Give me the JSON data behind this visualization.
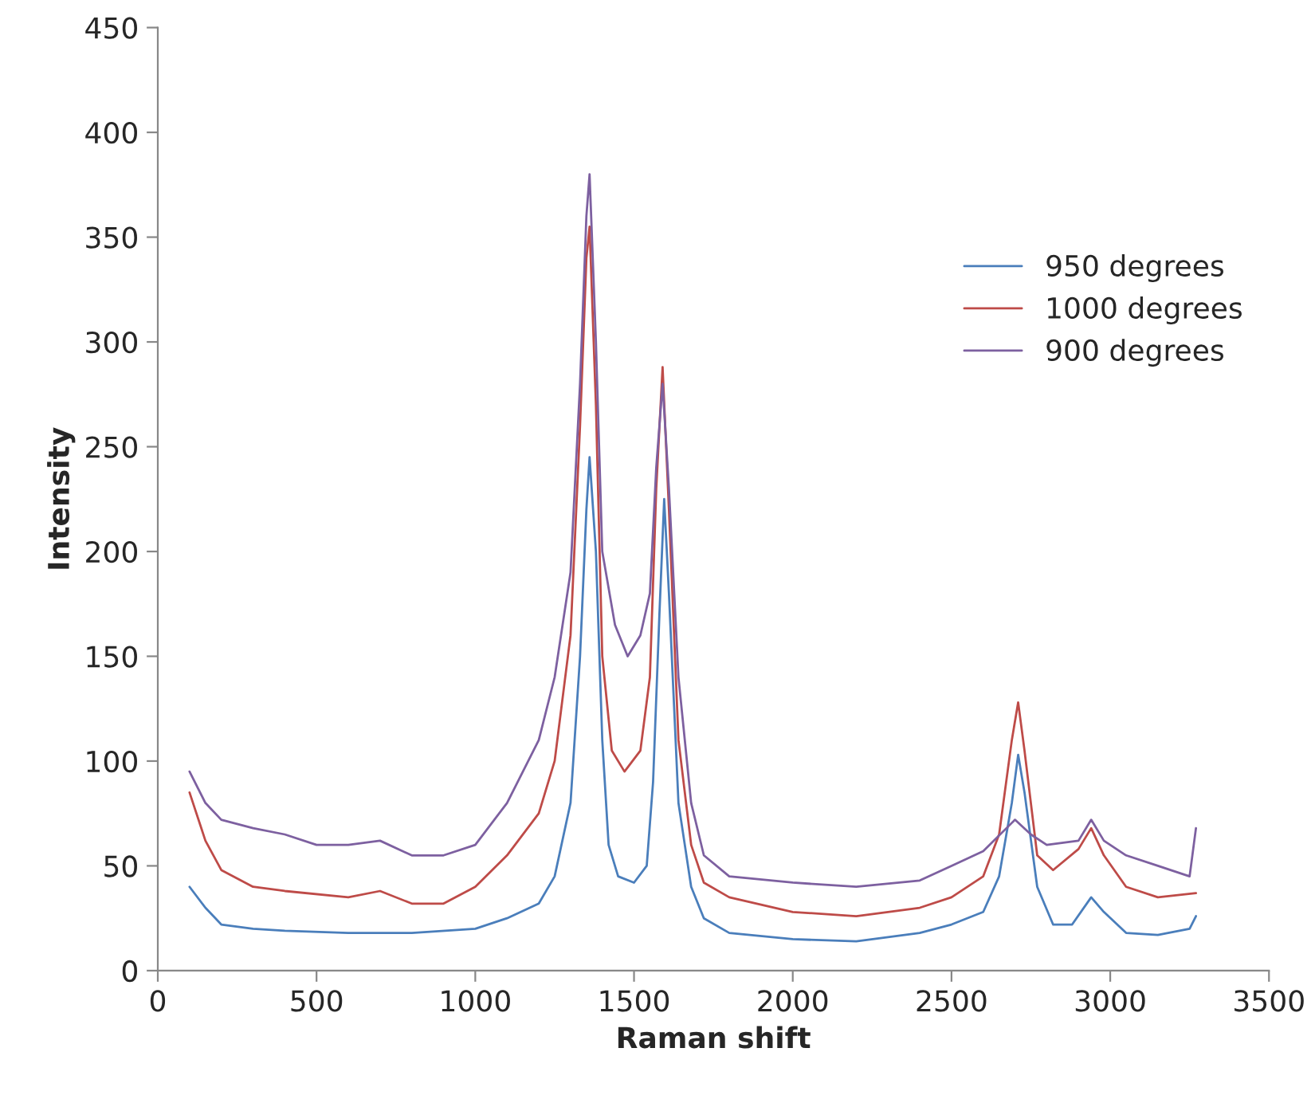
{
  "chart_data": {
    "type": "line",
    "xlabel": "Raman shift",
    "ylabel": "Intensity",
    "xlim": [
      0,
      3500
    ],
    "xticks": [
      0,
      500,
      1000,
      1500,
      2000,
      2500,
      3000,
      3500
    ],
    "ylim": [
      0,
      450
    ],
    "yticks": [
      0,
      50,
      100,
      150,
      200,
      250,
      300,
      350,
      400,
      450
    ],
    "grid": false,
    "legend": "right",
    "marker": "none",
    "line_style": "solid",
    "series": [
      {
        "name": "950 degrees",
        "color": "#4a7ebb",
        "x": [
          100,
          150,
          200,
          300,
          400,
          600,
          800,
          1000,
          1100,
          1200,
          1250,
          1300,
          1330,
          1350,
          1360,
          1380,
          1400,
          1420,
          1450,
          1500,
          1540,
          1560,
          1580,
          1595,
          1610,
          1640,
          1680,
          1720,
          1800,
          2000,
          2200,
          2400,
          2500,
          2600,
          2650,
          2690,
          2710,
          2730,
          2770,
          2820,
          2880,
          2940,
          2980,
          3050,
          3150,
          3250,
          3270
        ],
        "values": [
          40,
          30,
          22,
          20,
          19,
          18,
          18,
          20,
          25,
          32,
          45,
          80,
          150,
          220,
          245,
          200,
          110,
          60,
          45,
          42,
          50,
          90,
          170,
          225,
          180,
          80,
          40,
          25,
          18,
          15,
          14,
          18,
          22,
          28,
          45,
          80,
          103,
          85,
          40,
          22,
          22,
          35,
          28,
          18,
          17,
          20,
          26
        ]
      },
      {
        "name": "1000 degrees",
        "color": "#be4b48",
        "x": [
          100,
          150,
          200,
          300,
          400,
          600,
          700,
          800,
          900,
          1000,
          1100,
          1200,
          1250,
          1300,
          1330,
          1350,
          1360,
          1380,
          1400,
          1430,
          1470,
          1520,
          1550,
          1570,
          1590,
          1610,
          1640,
          1680,
          1720,
          1800,
          2000,
          2200,
          2400,
          2500,
          2600,
          2650,
          2690,
          2710,
          2730,
          2770,
          2820,
          2900,
          2940,
          2980,
          3050,
          3150,
          3270
        ],
        "values": [
          85,
          62,
          48,
          40,
          38,
          35,
          38,
          32,
          32,
          40,
          55,
          75,
          100,
          160,
          260,
          340,
          355,
          270,
          150,
          105,
          95,
          105,
          140,
          230,
          288,
          220,
          110,
          60,
          42,
          35,
          28,
          26,
          30,
          35,
          45,
          65,
          110,
          128,
          105,
          55,
          48,
          58,
          68,
          55,
          40,
          35,
          37
        ]
      },
      {
        "name": "900 degrees",
        "color": "#7d60a0",
        "x": [
          100,
          150,
          200,
          300,
          400,
          500,
          600,
          700,
          800,
          900,
          1000,
          1100,
          1200,
          1250,
          1300,
          1330,
          1350,
          1360,
          1380,
          1400,
          1440,
          1480,
          1520,
          1550,
          1570,
          1590,
          1610,
          1640,
          1680,
          1720,
          1800,
          2000,
          2200,
          2400,
          2500,
          2600,
          2700,
          2750,
          2800,
          2900,
          2940,
          2980,
          3050,
          3150,
          3250,
          3270
        ],
        "values": [
          95,
          80,
          72,
          68,
          65,
          60,
          60,
          62,
          55,
          55,
          60,
          80,
          110,
          140,
          190,
          280,
          360,
          380,
          300,
          200,
          165,
          150,
          160,
          180,
          240,
          280,
          230,
          140,
          80,
          55,
          45,
          42,
          40,
          43,
          50,
          57,
          72,
          65,
          60,
          62,
          72,
          62,
          55,
          50,
          45,
          68
        ]
      }
    ]
  }
}
